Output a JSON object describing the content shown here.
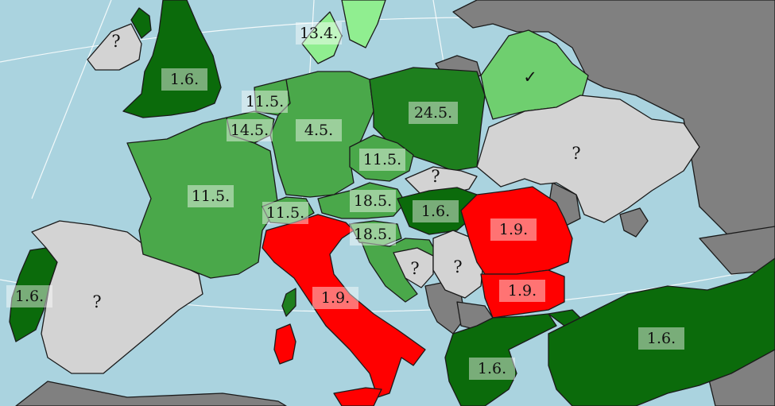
{
  "colors": {
    "sea": "#aad3df",
    "dark_green": "#0b6b0b",
    "mid_green": "#1e7f1e",
    "green": "#4aa84a",
    "light_green": "#6fcf6f",
    "pale_green": "#90ee90",
    "red": "#ff0000",
    "unknown": "#d3d3d3",
    "non_member": "#808080"
  },
  "countries": {
    "uk": "1.6.",
    "ireland": "?",
    "portugal": "1.6.",
    "spain": "?",
    "france": "11.5.",
    "belgium": "14.5.",
    "netherlands": "11.5.",
    "germany": "4.5.",
    "denmark": "13.4.",
    "poland": "24.5.",
    "czechia": "11.5.",
    "slovakia": "?",
    "hungary": "1.6.",
    "austria": "18.5.",
    "switzerland": "11.5.",
    "slovenia": "18.5.",
    "croatia": "?",
    "bosnia": "?",
    "italy": "1.9.",
    "romania": "1.9.",
    "bulgaria": "1.9.",
    "greece": "1.6.",
    "turkey": "1.6.",
    "ukraine": "?",
    "belarus": "✓"
  }
}
